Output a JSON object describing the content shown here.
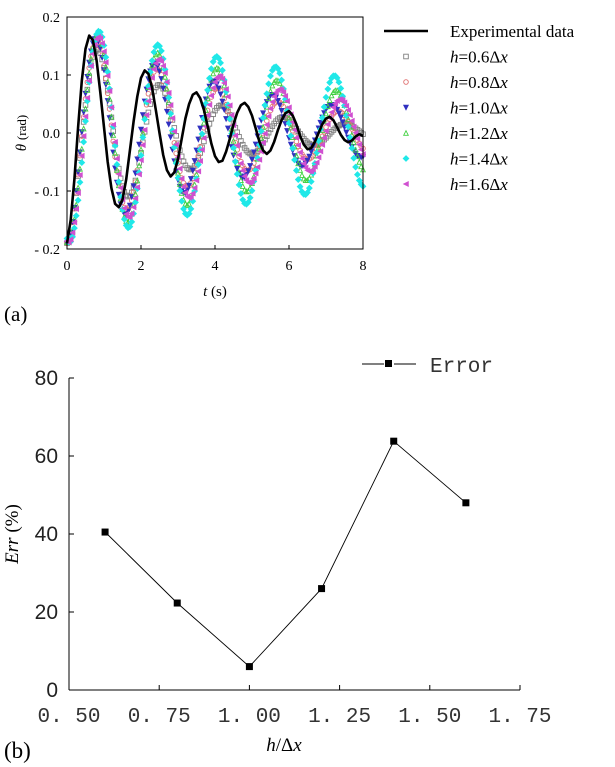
{
  "colors": {
    "experimental": "#000000",
    "h06": "#808080",
    "h08": "#e07070",
    "h10": "#3030c0",
    "h12": "#40d040",
    "h14": "#20e8e8",
    "h16": "#d050d0",
    "error_line": "#000000"
  },
  "chart_data": [
    {
      "type": "line",
      "panel_label": "(a)",
      "xlabel_var": "t",
      "xlabel_unit": "(s)",
      "ylabel_var": "θ",
      "ylabel_unit": "(rad)",
      "xlim": [
        0,
        8
      ],
      "ylim": [
        -0.2,
        0.2
      ],
      "xticks": [
        0,
        2,
        4,
        6,
        8
      ],
      "xtick_labels": [
        "0",
        "2",
        "4",
        "6",
        "8"
      ],
      "yticks": [
        -0.2,
        -0.1,
        0.0,
        0.1,
        0.2
      ],
      "ytick_labels": [
        "- 0.2",
        "- 0.1",
        "0.0",
        "0.1",
        "0.2"
      ],
      "legend_position": "right-outside",
      "series": [
        {
          "name": "Experimental data",
          "label_parts": [
            "Experimental data"
          ],
          "style": "line",
          "color_key": "experimental",
          "x": [
            0,
            0.1,
            0.2,
            0.3,
            0.4,
            0.5,
            0.6,
            0.7,
            0.8,
            0.9,
            1.0,
            1.1,
            1.2,
            1.3,
            1.4,
            1.5,
            1.6,
            1.7,
            1.8,
            1.9,
            2.0,
            2.1,
            2.2,
            2.3,
            2.4,
            2.5,
            2.6,
            2.7,
            2.8,
            2.9,
            3.0,
            3.1,
            3.2,
            3.3,
            3.4,
            3.5,
            3.6,
            3.7,
            3.8,
            3.9,
            4.0,
            4.1,
            4.2,
            4.3,
            4.4,
            4.5,
            4.6,
            4.7,
            4.8,
            4.9,
            5.0,
            5.1,
            5.2,
            5.3,
            5.4,
            5.5,
            5.6,
            5.7,
            5.8,
            5.9,
            6.0,
            6.1,
            6.2,
            6.3,
            6.4,
            6.5,
            6.6,
            6.7,
            6.8,
            6.9,
            7.0,
            7.1,
            7.2,
            7.3,
            7.4,
            7.5,
            7.6,
            7.7,
            7.8,
            7.9,
            8.0
          ],
          "y": [
            -0.19,
            -0.15,
            -0.08,
            0.01,
            0.09,
            0.145,
            0.168,
            0.16,
            0.125,
            0.07,
            0.01,
            -0.05,
            -0.095,
            -0.122,
            -0.128,
            -0.115,
            -0.08,
            -0.03,
            0.02,
            0.063,
            0.095,
            0.108,
            0.102,
            0.078,
            0.04,
            0.0,
            -0.038,
            -0.064,
            -0.075,
            -0.068,
            -0.045,
            -0.01,
            0.025,
            0.05,
            0.066,
            0.07,
            0.06,
            0.04,
            0.012,
            -0.018,
            -0.04,
            -0.05,
            -0.048,
            -0.032,
            -0.01,
            0.015,
            0.035,
            0.048,
            0.052,
            0.045,
            0.03,
            0.008,
            -0.015,
            -0.03,
            -0.036,
            -0.03,
            -0.015,
            0.005,
            0.022,
            0.034,
            0.038,
            0.03,
            0.015,
            -0.005,
            -0.02,
            -0.028,
            -0.026,
            -0.015,
            0.0,
            0.015,
            0.025,
            0.028,
            0.022,
            0.01,
            -0.003,
            -0.012,
            -0.016,
            -0.013,
            -0.006,
            -0.002,
            -0.005
          ]
        },
        {
          "name": "h=0.6Δx",
          "label_parts": [
            "h",
            "=0.6Δ",
            "x"
          ],
          "style": "markers",
          "marker": "square",
          "color_key": "h06",
          "omega": 3.75,
          "phase": 3.14159,
          "A0": 0.19,
          "decay": 0.33,
          "shift": 0.0
        },
        {
          "name": "h=0.8Δx",
          "label_parts": [
            "h",
            "=0.8Δ",
            "x"
          ],
          "style": "markers",
          "marker": "circle",
          "color_key": "h08",
          "omega": 3.85,
          "phase": 3.14159,
          "A0": 0.19,
          "decay": 0.22,
          "shift": 0.0
        },
        {
          "name": "h=1.0Δx",
          "label_parts": [
            "h",
            "=1.0Δ",
            "x"
          ],
          "style": "markers",
          "marker": "triangle-down",
          "color_key": "h10",
          "omega": 3.95,
          "phase": 3.14159,
          "A0": 0.19,
          "decay": 0.19,
          "shift": 0.0
        },
        {
          "name": "h=1.2Δx",
          "label_parts": [
            "h",
            "=1.2Δ",
            "x"
          ],
          "style": "markers",
          "marker": "triangle-up",
          "color_key": "h12",
          "omega": 3.9,
          "phase": 3.0,
          "A0": 0.19,
          "decay": 0.13,
          "shift": 0.0
        },
        {
          "name": "h=1.4Δx",
          "label_parts": [
            "h",
            "=1.4Δ",
            "x"
          ],
          "style": "markers",
          "marker": "diamond",
          "color_key": "h14",
          "omega": 3.95,
          "phase": 2.85,
          "A0": 0.19,
          "decay": 0.09,
          "shift": 0.0
        },
        {
          "name": "h=1.6Δx",
          "label_parts": [
            "h",
            "=1.6Δ",
            "x"
          ],
          "style": "markers",
          "marker": "triangle-left",
          "color_key": "h16",
          "omega": 3.85,
          "phase": 2.95,
          "A0": 0.19,
          "decay": 0.16,
          "shift": 0.0
        }
      ]
    },
    {
      "type": "line",
      "panel_label": "(b)",
      "xlabel_var": "h",
      "xlabel_rest": "/Δ",
      "xlabel_var2": "x",
      "ylabel_var": "Err",
      "ylabel_unit": "(%)",
      "xlim": [
        0.5,
        1.75
      ],
      "ylim": [
        0,
        80
      ],
      "xticks": [
        0.5,
        0.75,
        1.0,
        1.25,
        1.5,
        1.75
      ],
      "xtick_labels": [
        "0. 50",
        "0. 75",
        "1. 00",
        "1. 25",
        "1. 50",
        "1. 75"
      ],
      "yticks": [
        0,
        20,
        40,
        60,
        80
      ],
      "ytick_labels": [
        "0",
        "20",
        "40",
        "60",
        "80"
      ],
      "legend_position": "top-right",
      "series": [
        {
          "name": "Error",
          "style": "line-markers",
          "marker": "square",
          "color_key": "error_line",
          "x": [
            0.6,
            0.8,
            1.0,
            1.2,
            1.4,
            1.6
          ],
          "y": [
            40.5,
            22.3,
            6.0,
            26.0,
            63.8,
            48.0
          ]
        }
      ]
    }
  ]
}
